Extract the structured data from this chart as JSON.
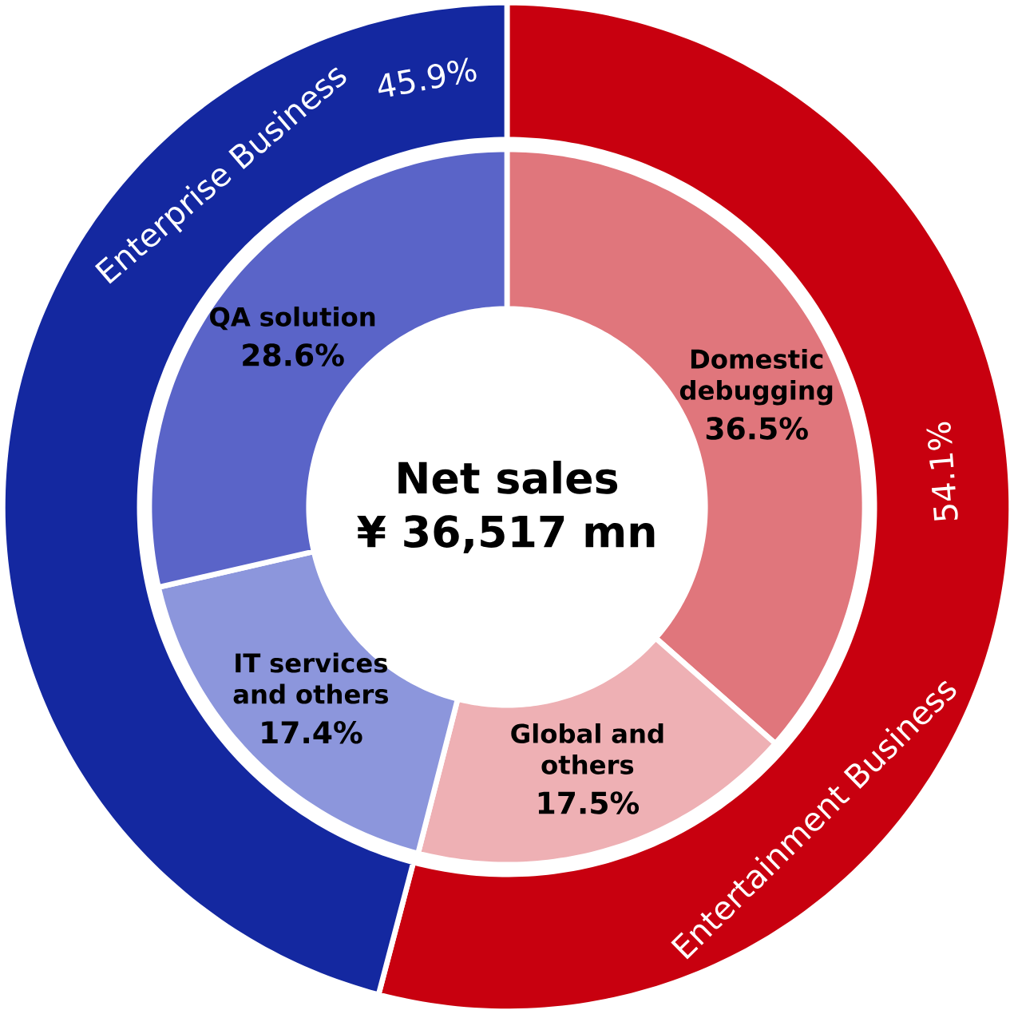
{
  "chart_data": [
    {
      "type": "donut",
      "categories": [
        "Entertainment Business",
        "Enterprise Business"
      ],
      "values": [
        54.1,
        45.9
      ],
      "colors": [
        "#c8000f",
        "#1428a0"
      ],
      "value_labels": [
        "54.1%",
        "45.9%"
      ]
    },
    {
      "type": "donut",
      "title": "Net sales",
      "subtitle": "¥ 36,517 mn",
      "categories": [
        "Domestic debugging",
        "Global and others",
        "IT services and others",
        "QA solution"
      ],
      "values": [
        36.5,
        17.5,
        17.4,
        28.6
      ],
      "colors": [
        "#e0767c",
        "#eeb0b4",
        "#8c96dc",
        "#5a64c8"
      ],
      "value_labels": [
        "36.5%",
        "17.5%",
        "17.4%",
        "28.6%"
      ]
    }
  ]
}
